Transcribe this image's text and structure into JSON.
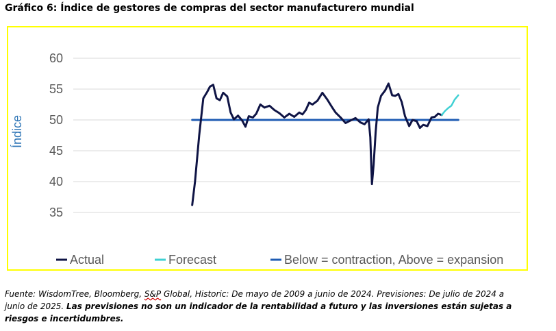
{
  "title": "Gráfico 6: Índice de gestores de compras del sector manufacturero mundial",
  "footnote": {
    "part1": "Fuente: WisdomTree, Bloomberg, ",
    "sgp": "S&P",
    "part2": " Global, Historic: De mayo de 2009 a junio de 2024. Previsiones: De julio de 2024 a junio de 2025. ",
    "bold": "Las previsiones no son un indicador de la rentabilidad a futuro y las inversiones están sujetas a riesgos e incertidumbres."
  },
  "chart_data": {
    "type": "line",
    "ylabel": "Índice",
    "xlabel": "",
    "ylim": [
      33,
      63
    ],
    "yticks": [
      35,
      40,
      45,
      50,
      55,
      60
    ],
    "grid": true,
    "legend_position": "bottom",
    "colors": {
      "actual": "#0f1445",
      "forecast": "#3fd0d3",
      "threshold": "#1f5cb3",
      "axis_text": "#595959",
      "ylabel": "#2e75b6",
      "grid": "#d9d9d9"
    },
    "series": [
      {
        "name": "Actual",
        "x": [
          2009.33,
          2009.5,
          2009.75,
          2010.0,
          2010.25,
          2010.4,
          2010.6,
          2010.8,
          2011.0,
          2011.2,
          2011.45,
          2011.65,
          2011.85,
          2012.1,
          2012.35,
          2012.55,
          2012.75,
          2013.0,
          2013.2,
          2013.45,
          2013.7,
          2014.0,
          2014.3,
          2014.6,
          2014.9,
          2015.2,
          2015.5,
          2015.8,
          2016.0,
          2016.2,
          2016.4,
          2016.6,
          2016.9,
          2017.2,
          2017.5,
          2017.8,
          2018.0,
          2018.3,
          2018.6,
          2018.9,
          2019.2,
          2019.5,
          2019.75,
          2020.0,
          2020.1,
          2020.2,
          2020.3,
          2020.42,
          2020.55,
          2020.75,
          2021.0,
          2021.2,
          2021.42,
          2021.6,
          2021.8,
          2022.0,
          2022.2,
          2022.45,
          2022.65,
          2022.9,
          2023.1,
          2023.3,
          2023.55,
          2023.8,
          2024.0,
          2024.2,
          2024.42
        ],
        "values": [
          36.2,
          40.0,
          47.5,
          53.5,
          54.6,
          55.4,
          55.7,
          53.5,
          53.2,
          54.4,
          53.8,
          51.2,
          50.1,
          50.7,
          49.9,
          48.9,
          50.6,
          50.4,
          51.0,
          52.5,
          52.0,
          52.3,
          51.6,
          51.1,
          50.4,
          51.0,
          50.5,
          51.2,
          50.9,
          51.6,
          52.8,
          52.5,
          53.1,
          54.4,
          53.3,
          52.0,
          51.2,
          50.4,
          49.5,
          49.9,
          50.3,
          49.6,
          49.3,
          50.1,
          47.2,
          39.6,
          42.8,
          48.0,
          52.0,
          53.9,
          54.8,
          55.9,
          54.0,
          53.9,
          54.2,
          52.9,
          50.6,
          49.0,
          50.0,
          49.8,
          48.7,
          49.2,
          49.0,
          50.4,
          50.5,
          51.0,
          50.8
        ]
      },
      {
        "name": "Forecast",
        "x": [
          2024.42,
          2024.6,
          2024.8,
          2025.0,
          2025.2,
          2025.42
        ],
        "values": [
          50.8,
          51.4,
          51.9,
          52.3,
          53.3,
          54.0
        ]
      },
      {
        "name": "Below = contraction, Above = expansion",
        "x": [
          2009.33,
          2025.42
        ],
        "values": [
          50,
          50
        ]
      }
    ]
  }
}
